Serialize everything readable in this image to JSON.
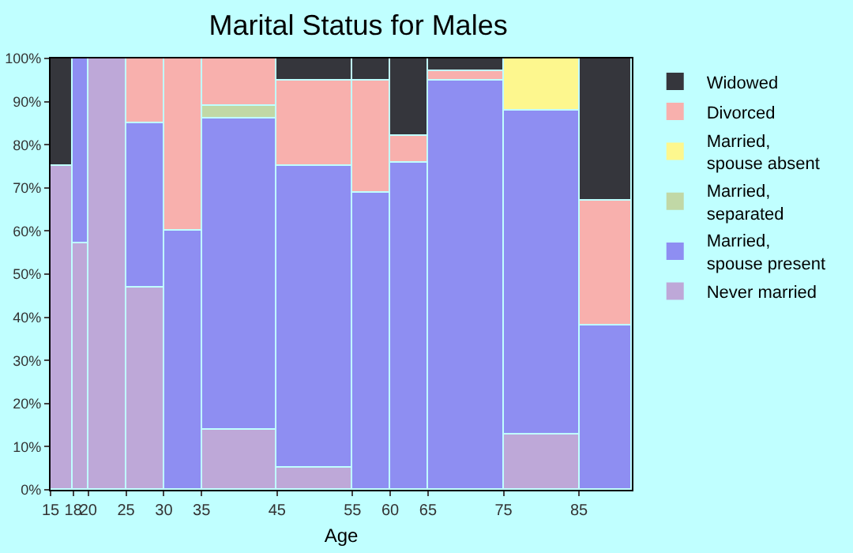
{
  "chart_data": {
    "type": "bar",
    "stacked": true,
    "title": "Marital Status for Males",
    "xlabel": "Age",
    "x": [
      16.5,
      19,
      22.5,
      27.5,
      32.5,
      40,
      50,
      57.5,
      62.5,
      70,
      80,
      88.5
    ],
    "series": [
      {
        "name": "Never married",
        "color": "#bea8d8",
        "values": [
          75,
          57,
          100,
          47,
          null,
          14,
          5,
          null,
          null,
          null,
          13,
          null
        ]
      },
      {
        "name": "Married, spouse present",
        "color": "#8e8ef2",
        "values": [
          null,
          43,
          null,
          38,
          60,
          72,
          70,
          69,
          76,
          95,
          75,
          38
        ]
      },
      {
        "name": "Married, separated",
        "color": "#c1d8a6",
        "values": [
          null,
          null,
          null,
          null,
          null,
          3,
          null,
          null,
          null,
          null,
          null,
          null
        ]
      },
      {
        "name": "Married, spouse absent",
        "color": "#fdf78e",
        "values": [
          null,
          null,
          null,
          null,
          null,
          null,
          null,
          null,
          null,
          null,
          12,
          null
        ]
      },
      {
        "name": "Divorced",
        "color": "#f8b0ad",
        "values": [
          null,
          null,
          null,
          15,
          40,
          11,
          20,
          26,
          6,
          2,
          null,
          29
        ]
      },
      {
        "name": "Widowed",
        "color": "#35363c",
        "values": [
          25,
          null,
          null,
          null,
          null,
          null,
          5,
          5,
          18,
          3,
          null,
          33
        ]
      }
    ],
    "xlim": [
      15,
      92
    ],
    "xticks": [
      15,
      18,
      20,
      25,
      30,
      35,
      45,
      55,
      60,
      65,
      75,
      85
    ],
    "ylim": [
      0,
      100
    ],
    "yticks": [
      {
        "value": 0,
        "label": "0%"
      },
      {
        "value": 10,
        "label": "10%"
      },
      {
        "value": 20,
        "label": "20%"
      },
      {
        "value": 30,
        "label": "30%"
      },
      {
        "value": 40,
        "label": "40%"
      },
      {
        "value": 50,
        "label": "50%"
      },
      {
        "value": 60,
        "label": "60%"
      },
      {
        "value": 70,
        "label": "70%"
      },
      {
        "value": 80,
        "label": "80%"
      },
      {
        "value": 90,
        "label": "90%"
      },
      {
        "value": 100,
        "label": "100%"
      }
    ],
    "legend": "right"
  }
}
